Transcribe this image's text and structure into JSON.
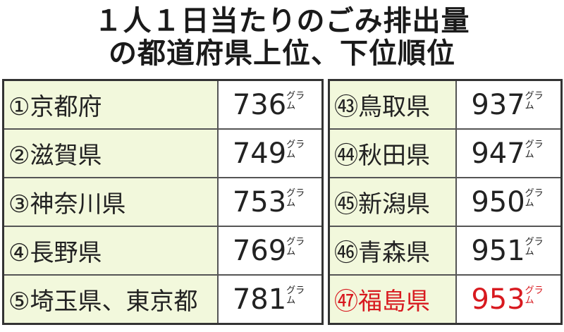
{
  "title_line1": "１人１日当たりのごみ排出量",
  "title_line2": "の都道府県上位、下位順位",
  "chart_data": {
    "type": "table",
    "unit": "グラム",
    "highlight_color": "#d8191f",
    "top": [
      {
        "rank": "①",
        "name": "京都府",
        "value": "736"
      },
      {
        "rank": "②",
        "name": "滋賀県",
        "value": "749"
      },
      {
        "rank": "③",
        "name": "神奈川県",
        "value": "753"
      },
      {
        "rank": "④",
        "name": "長野県",
        "value": "769"
      },
      {
        "rank": "⑤",
        "name": "埼玉県、東京都",
        "value": "781"
      }
    ],
    "bottom": [
      {
        "rank": "㊸",
        "name": "鳥取県",
        "value": "937"
      },
      {
        "rank": "㊹",
        "name": "秋田県",
        "value": "947"
      },
      {
        "rank": "㊺",
        "name": "新潟県",
        "value": "950"
      },
      {
        "rank": "㊻",
        "name": "青森県",
        "value": "951"
      },
      {
        "rank": "㊼",
        "name": "福島県",
        "value": "953",
        "highlight": true
      }
    ]
  }
}
